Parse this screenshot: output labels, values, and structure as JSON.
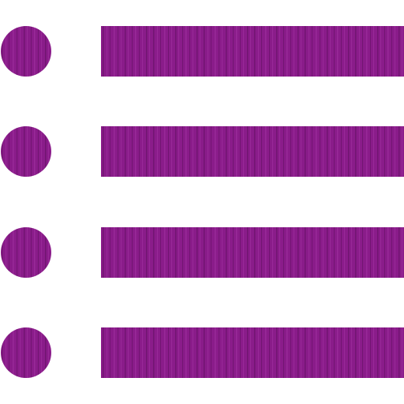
{
  "icon": {
    "name": "list-bullets-icon",
    "item_count": 4,
    "colors": {
      "base": "#8a1c8a",
      "dark_streak": "#5e0f5e",
      "light_streak": "#a83aa8",
      "background": "#ffffff"
    }
  }
}
